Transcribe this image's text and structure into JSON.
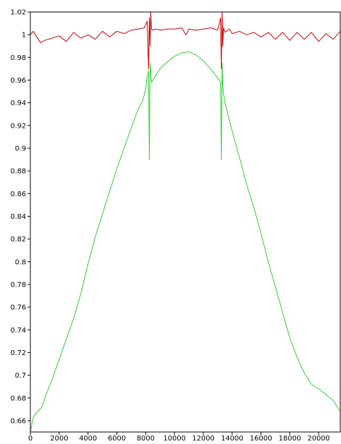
{
  "chart_data": {
    "type": "line",
    "title": "",
    "xlabel": "",
    "ylabel": "",
    "xlim": [
      0,
      21500
    ],
    "ylim": [
      0.65,
      1.02
    ],
    "grid": false,
    "legend": "none",
    "x_ticks": [
      0,
      2000,
      4000,
      6000,
      8000,
      10000,
      12000,
      14000,
      16000,
      18000,
      20000
    ],
    "x_tick_labels": [
      "0",
      "2000",
      "4000",
      "6000",
      "8000",
      "10000",
      "12000",
      "14000",
      "16000",
      "18000",
      "20000"
    ],
    "y_ticks": [
      0.66,
      0.68,
      0.7,
      0.72,
      0.74,
      0.76,
      0.78,
      0.8,
      0.82,
      0.84,
      0.86,
      0.88,
      0.9,
      0.92,
      0.94,
      0.96,
      0.98,
      1.0,
      1.02
    ],
    "y_tick_labels": [
      "0.66",
      "0.68",
      "0.7",
      "0.72",
      "0.74",
      "0.76",
      "0.78",
      "0.8",
      "0.82",
      "0.84",
      "0.86",
      "0.88",
      "0.9",
      "0.92",
      "0.94",
      "0.96",
      "0.98",
      "1",
      "1.02"
    ],
    "series": [
      {
        "color": "#cc0000",
        "x": [
          0,
          200,
          400,
          700,
          1000,
          1500,
          2000,
          2500,
          3000,
          3500,
          4000,
          4500,
          5000,
          5500,
          6000,
          6500,
          7000,
          7500,
          7900,
          8100,
          8200,
          8250,
          8300,
          8350,
          8400,
          8500,
          8700,
          9000,
          9500,
          10000,
          10500,
          10800,
          11000,
          11500,
          12000,
          12500,
          13000,
          13200,
          13250,
          13300,
          13350,
          13400,
          13500,
          13800,
          14000,
          14500,
          15000,
          15500,
          16000,
          16500,
          17000,
          17500,
          18000,
          18500,
          19000,
          19500,
          20000,
          20500,
          21000,
          21500
        ],
        "y": [
          1.0,
          1.003,
          0.999,
          0.993,
          0.995,
          0.997,
          0.999,
          0.994,
          1.002,
          0.997,
          1.0,
          0.996,
          1.003,
          0.998,
          1.003,
          1.001,
          1.004,
          1.005,
          1.006,
          1.012,
          0.97,
          1.015,
          0.99,
          1.02,
          1.005,
          1.004,
          1.005,
          1.004,
          1.005,
          1.005,
          1.006,
          1.0,
          1.005,
          1.004,
          1.005,
          1.006,
          1.004,
          1.015,
          0.97,
          1.02,
          0.99,
          1.006,
          1.002,
          1.005,
          1.001,
          1.003,
          1.0,
          1.002,
          0.998,
          1.002,
          0.996,
          1.002,
          0.995,
          1.002,
          0.996,
          1.002,
          0.994,
          1.001,
          0.996,
          1.003
        ]
      },
      {
        "color": "#33cc33",
        "x": [
          0,
          200,
          500,
          800,
          1000,
          1500,
          2000,
          2500,
          3000,
          3500,
          4000,
          4500,
          5000,
          5500,
          6000,
          6500,
          7000,
          7500,
          7800,
          8000,
          8100,
          8200,
          8250,
          8300,
          8400,
          8600,
          8800,
          9000,
          9500,
          10000,
          10500,
          11000,
          11500,
          12000,
          12500,
          13000,
          13200,
          13250,
          13300,
          13350,
          13400,
          13500,
          13700,
          14000,
          14500,
          15000,
          15500,
          16000,
          16500,
          17000,
          17500,
          18000,
          18500,
          19000,
          19500,
          20000,
          20500,
          21000,
          21500
        ],
        "y": [
          0.65,
          0.663,
          0.668,
          0.672,
          0.68,
          0.696,
          0.714,
          0.732,
          0.75,
          0.772,
          0.798,
          0.822,
          0.842,
          0.862,
          0.882,
          0.9,
          0.918,
          0.935,
          0.942,
          0.952,
          0.963,
          0.968,
          0.89,
          0.975,
          0.958,
          0.962,
          0.966,
          0.97,
          0.976,
          0.981,
          0.984,
          0.985,
          0.982,
          0.977,
          0.97,
          0.962,
          0.958,
          0.89,
          0.975,
          0.955,
          0.948,
          0.94,
          0.93,
          0.915,
          0.892,
          0.868,
          0.848,
          0.825,
          0.8,
          0.778,
          0.755,
          0.733,
          0.716,
          0.702,
          0.692,
          0.688,
          0.683,
          0.678,
          0.668
        ]
      }
    ]
  }
}
